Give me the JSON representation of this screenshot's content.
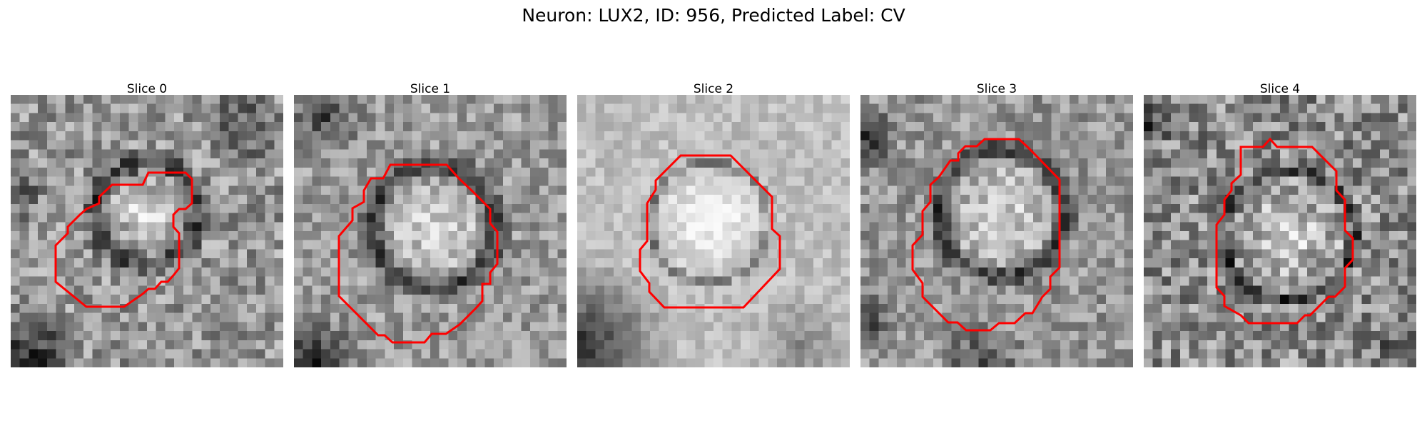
{
  "figure": {
    "title": "Neuron: LUX2, ID: 956, Predicted Label: CV"
  },
  "colors": {
    "background": "#ffffff",
    "contour": "#ff0000"
  },
  "slices": [
    {
      "label": "Slice 0"
    },
    {
      "label": "Slice 1"
    },
    {
      "label": "Slice 2"
    },
    {
      "label": "Slice 3"
    },
    {
      "label": "Slice 4"
    }
  ]
}
